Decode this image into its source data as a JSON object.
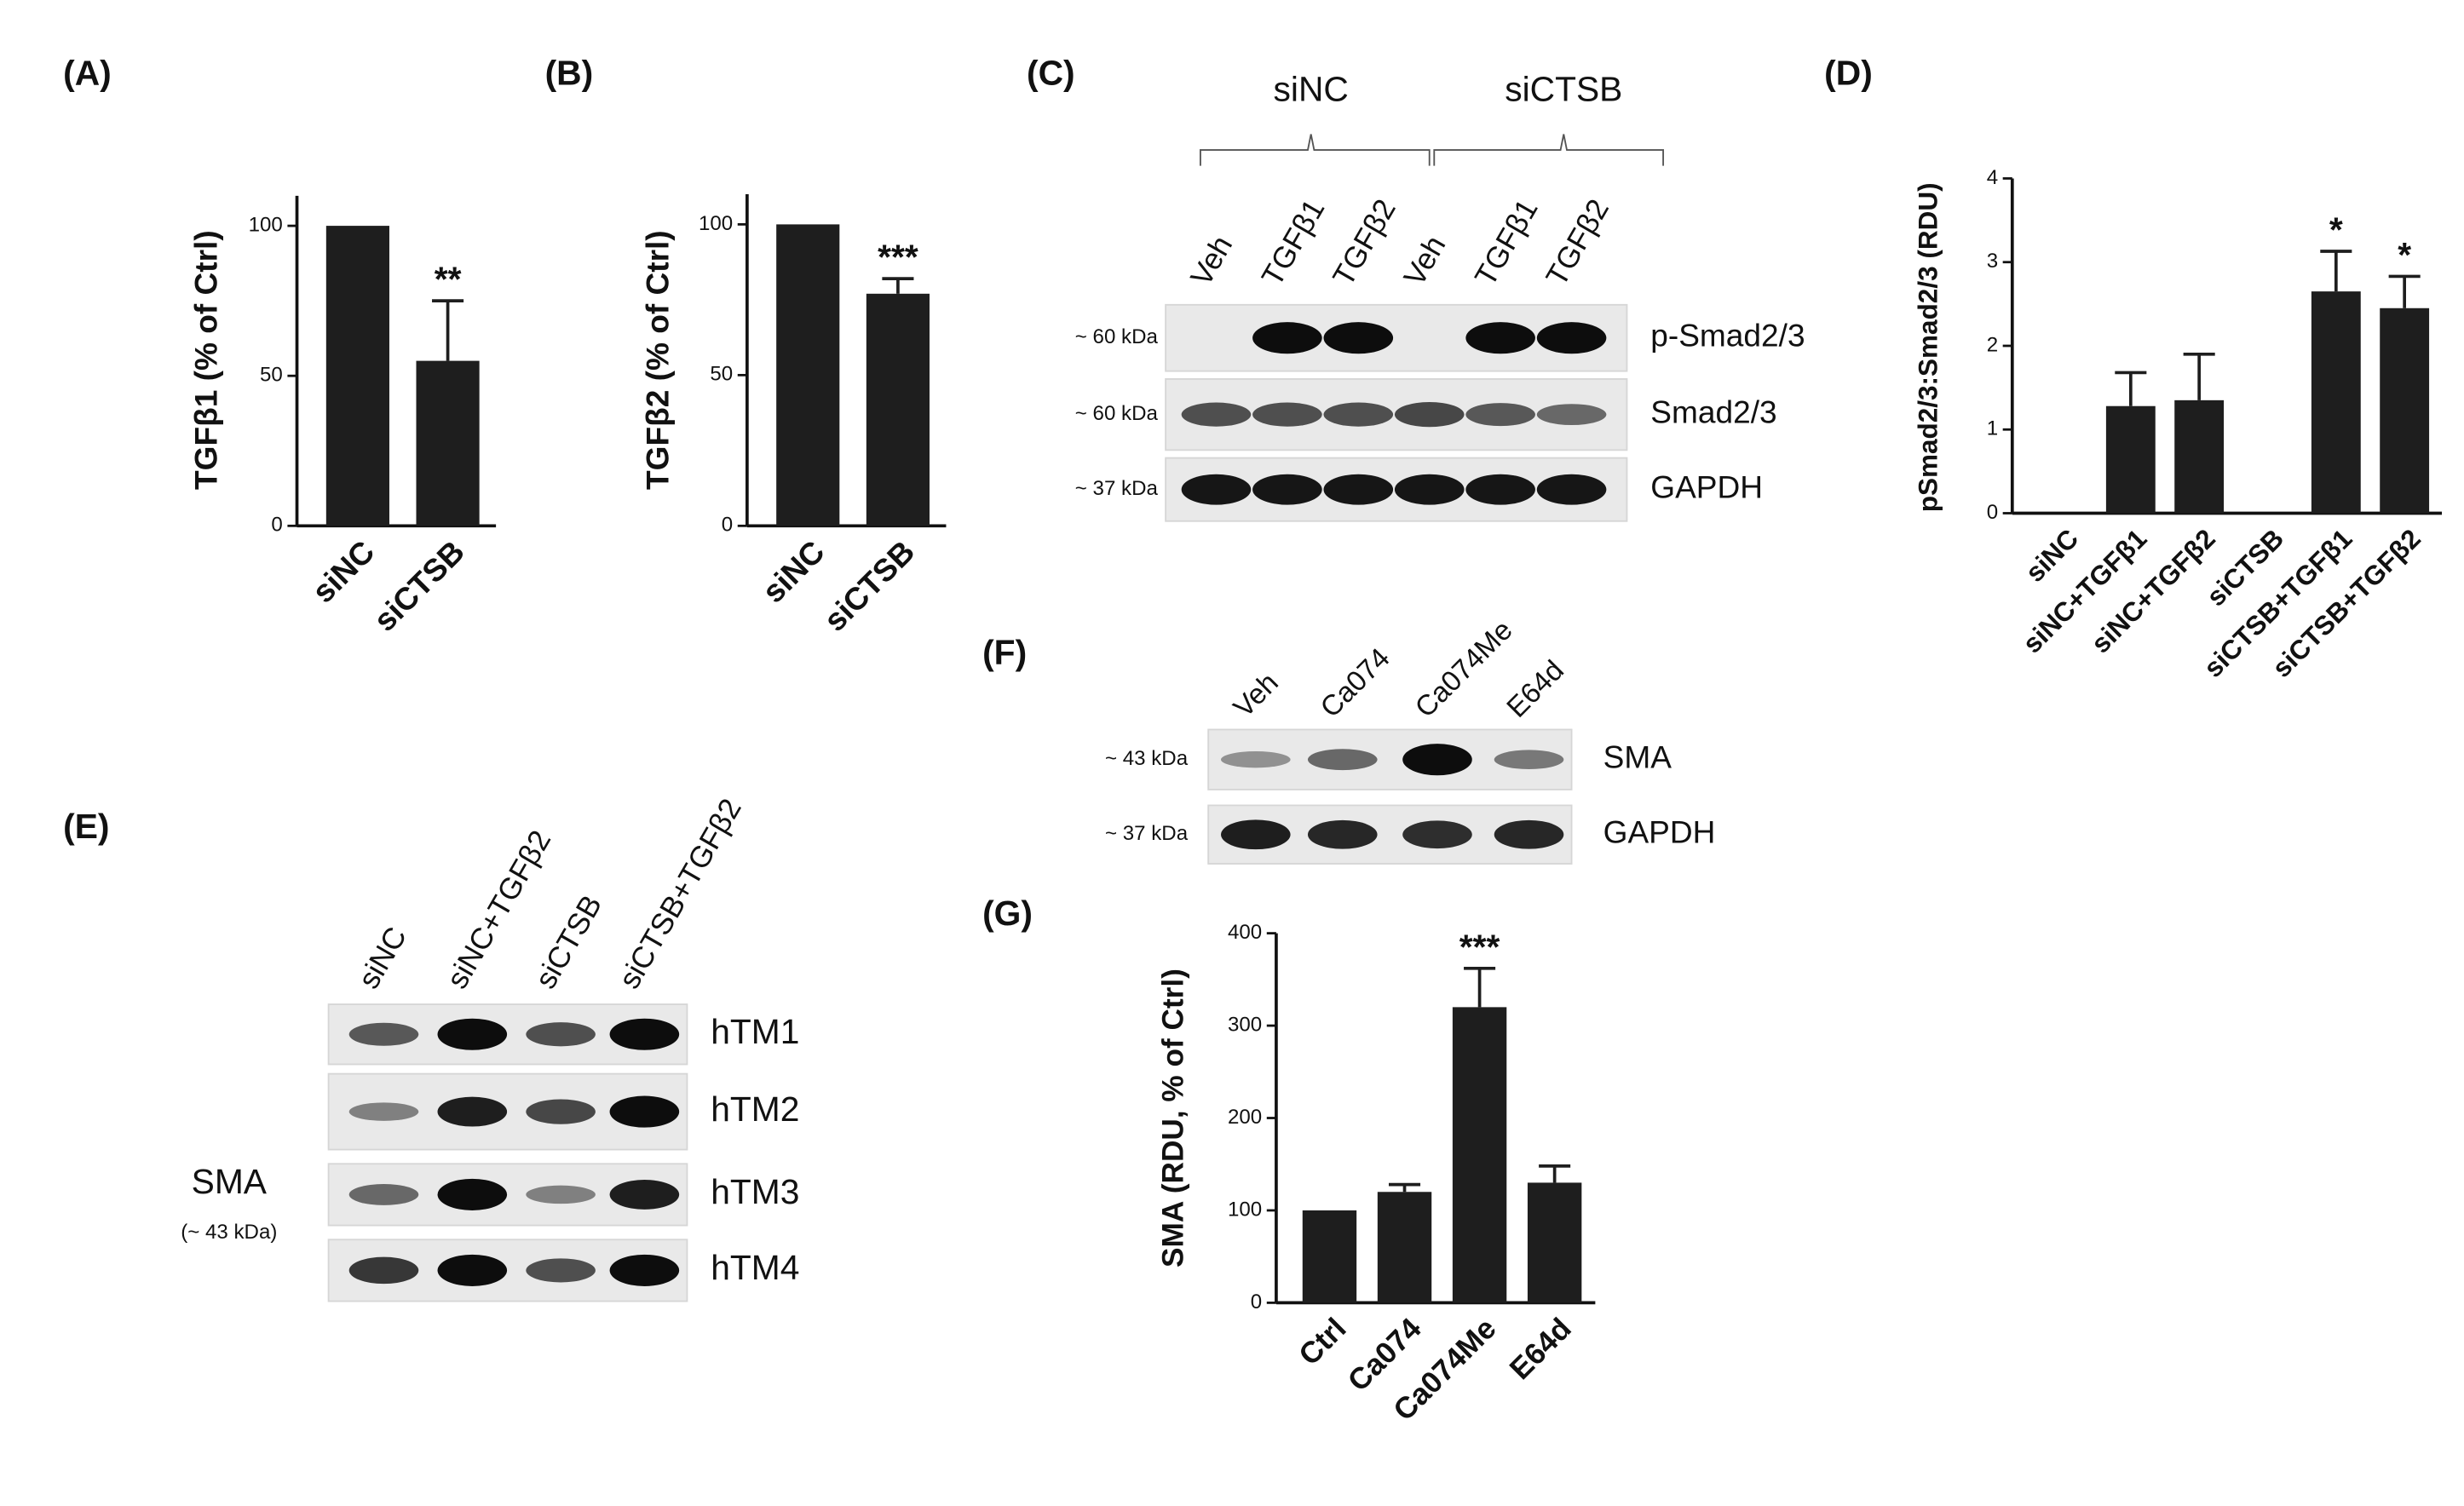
{
  "chart_data": [
    {
      "type": "bar",
      "panel": "(A)",
      "ylabel": "TGFβ1 (% of Ctrl)",
      "categories": [
        "siNC",
        "siCTSB"
      ],
      "values": [
        100,
        55
      ],
      "errors": [
        null,
        20
      ],
      "value_annotations": [
        null,
        "**"
      ],
      "color": "#1e1e1e",
      "ylim": [
        0,
        110
      ],
      "yticks": [
        0,
        50,
        100
      ]
    },
    {
      "type": "bar",
      "panel": "(B)",
      "ylabel": "TGFβ2 (% of Ctrl)",
      "categories": [
        "siNC",
        "siCTSB"
      ],
      "values": [
        100,
        77
      ],
      "errors": [
        null,
        5
      ],
      "value_annotations": [
        null,
        "***"
      ],
      "color": "#1e1e1e",
      "ylim": [
        0,
        110
      ],
      "yticks": [
        0,
        50,
        100
      ]
    },
    {
      "type": "bar",
      "panel": "(D)",
      "ylabel": "pSmad2/3:Smad2/3 (RDU)",
      "categories": [
        "siNC",
        "siNC+TGFβ1",
        "siNC+TGFβ2",
        "siCTSB",
        "siCTSB+TGFβ1",
        "siCTSB+TGFβ2"
      ],
      "values": [
        0,
        1.28,
        1.35,
        0,
        2.65,
        2.45
      ],
      "errors": [
        null,
        0.4,
        0.55,
        null,
        0.48,
        0.38
      ],
      "value_annotations": [
        null,
        null,
        null,
        null,
        "*",
        "*"
      ],
      "color": "#1e1e1e",
      "ylim": [
        0,
        4
      ],
      "yticks": [
        0,
        1,
        2,
        3,
        4
      ]
    },
    {
      "type": "bar",
      "panel": "(G)",
      "ylabel": "SMA (RDU, % of Ctrl)",
      "categories": [
        "Ctrl",
        "Ca074",
        "Ca074Me",
        "E64d"
      ],
      "values": [
        100,
        120,
        320,
        130
      ],
      "errors": [
        null,
        8,
        42,
        18
      ],
      "value_annotations": [
        null,
        null,
        "***",
        null
      ],
      "color": "#1e1e1e",
      "ylim": [
        0,
        400
      ],
      "yticks": [
        0,
        100,
        200,
        300,
        400
      ]
    }
  ],
  "blots": [
    {
      "panel": "(C)",
      "groups": [
        "siNC",
        "siCTSB"
      ],
      "lanes": [
        "Veh",
        "TGFβ1",
        "TGFβ2",
        "Veh",
        "TGFβ1",
        "TGFβ2"
      ],
      "rows": [
        {
          "name": "p-Smad2/3",
          "size": "~ 60 kDa"
        },
        {
          "name": "Smad2/3",
          "size": "~ 60 kDa"
        },
        {
          "name": "GAPDH",
          "size": "~ 37 kDa"
        }
      ]
    },
    {
      "panel": "(E)",
      "lanes": [
        "siNC",
        "siNC+TGFβ2",
        "siCTSB",
        "siCTSB+TGFβ2"
      ],
      "side_label": "SMA",
      "side_size": "(~ 43 kDa)",
      "rows": [
        {
          "name": "hTM1"
        },
        {
          "name": "hTM2"
        },
        {
          "name": "hTM3"
        },
        {
          "name": "hTM4"
        }
      ]
    },
    {
      "panel": "(F)",
      "lanes": [
        "Veh",
        "Ca074",
        "Ca074Me",
        "E64d"
      ],
      "rows": [
        {
          "name": "SMA",
          "size": "~ 43 kDa"
        },
        {
          "name": "GAPDH",
          "size": "~ 37 kDa"
        }
      ]
    }
  ]
}
